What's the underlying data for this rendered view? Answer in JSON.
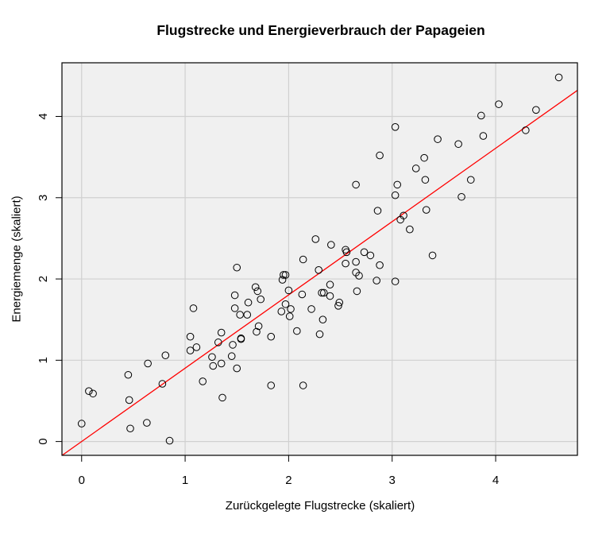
{
  "chart_data": {
    "type": "scatter",
    "title": "Flugstrecke und Energieverbrauch der Papageien",
    "xlabel": "Zurückgelegte Flugstrecke (skaliert)",
    "ylabel": "Energiemenge (skaliert)",
    "xlim": [
      -0.19,
      4.79
    ],
    "ylim": [
      -0.17,
      4.66
    ],
    "xticks": [
      "0",
      "1",
      "2",
      "3",
      "4"
    ],
    "yticks": [
      "0",
      "1",
      "2",
      "3",
      "4"
    ],
    "grid": true,
    "legend": null,
    "colors": {
      "panel_background": "#f0f0f0",
      "grid": "#d0d0d0",
      "points": "#000000",
      "regression_line": "#ff0000"
    },
    "regression_line": {
      "intercept": 0.0,
      "slope": 0.902
    },
    "points": [
      [
        0.0,
        0.22
      ],
      [
        0.07,
        0.62
      ],
      [
        0.11,
        0.59
      ],
      [
        0.45,
        0.82
      ],
      [
        0.46,
        0.51
      ],
      [
        0.47,
        0.16
      ],
      [
        0.63,
        0.23
      ],
      [
        0.64,
        0.96
      ],
      [
        0.78,
        0.71
      ],
      [
        0.81,
        1.06
      ],
      [
        0.85,
        0.01
      ],
      [
        1.05,
        1.29
      ],
      [
        1.05,
        1.12
      ],
      [
        1.08,
        1.64
      ],
      [
        1.11,
        1.16
      ],
      [
        1.17,
        0.74
      ],
      [
        1.26,
        1.04
      ],
      [
        1.27,
        0.93
      ],
      [
        1.32,
        1.22
      ],
      [
        1.35,
        1.34
      ],
      [
        1.35,
        0.96
      ],
      [
        1.36,
        0.54
      ],
      [
        1.45,
        1.05
      ],
      [
        1.46,
        1.19
      ],
      [
        1.48,
        1.8
      ],
      [
        1.48,
        1.64
      ],
      [
        1.5,
        2.14
      ],
      [
        1.5,
        0.9
      ],
      [
        1.53,
        1.56
      ],
      [
        1.54,
        1.27
      ],
      [
        1.54,
        1.26
      ],
      [
        1.6,
        1.56
      ],
      [
        1.61,
        1.71
      ],
      [
        1.68,
        1.9
      ],
      [
        1.69,
        1.35
      ],
      [
        1.7,
        1.85
      ],
      [
        1.71,
        1.42
      ],
      [
        1.73,
        1.75
      ],
      [
        1.83,
        1.29
      ],
      [
        1.83,
        0.69
      ],
      [
        1.93,
        1.6
      ],
      [
        1.94,
        1.99
      ],
      [
        1.95,
        2.05
      ],
      [
        1.97,
        2.05
      ],
      [
        1.97,
        1.69
      ],
      [
        2.0,
        1.86
      ],
      [
        2.01,
        1.54
      ],
      [
        2.02,
        1.63
      ],
      [
        2.08,
        1.36
      ],
      [
        2.13,
        1.81
      ],
      [
        2.14,
        2.24
      ],
      [
        2.14,
        0.69
      ],
      [
        2.22,
        1.63
      ],
      [
        2.26,
        2.49
      ],
      [
        2.29,
        2.11
      ],
      [
        2.3,
        1.32
      ],
      [
        2.32,
        1.83
      ],
      [
        2.33,
        1.5
      ],
      [
        2.34,
        1.83
      ],
      [
        2.4,
        1.93
      ],
      [
        2.4,
        1.79
      ],
      [
        2.41,
        2.42
      ],
      [
        2.48,
        1.67
      ],
      [
        2.49,
        1.71
      ],
      [
        2.55,
        2.36
      ],
      [
        2.55,
        2.19
      ],
      [
        2.56,
        2.33
      ],
      [
        2.65,
        2.21
      ],
      [
        2.65,
        2.08
      ],
      [
        2.65,
        3.16
      ],
      [
        2.66,
        1.85
      ],
      [
        2.68,
        2.04
      ],
      [
        2.73,
        2.33
      ],
      [
        2.79,
        2.29
      ],
      [
        2.85,
        1.98
      ],
      [
        2.86,
        2.84
      ],
      [
        2.88,
        2.17
      ],
      [
        2.88,
        3.52
      ],
      [
        3.03,
        1.97
      ],
      [
        3.03,
        3.87
      ],
      [
        3.03,
        3.03
      ],
      [
        3.05,
        3.16
      ],
      [
        3.08,
        2.73
      ],
      [
        3.11,
        2.78
      ],
      [
        3.17,
        2.61
      ],
      [
        3.23,
        3.36
      ],
      [
        3.31,
        3.49
      ],
      [
        3.32,
        3.22
      ],
      [
        3.33,
        2.85
      ],
      [
        3.39,
        2.29
      ],
      [
        3.44,
        3.72
      ],
      [
        3.64,
        3.66
      ],
      [
        3.67,
        3.01
      ],
      [
        3.76,
        3.22
      ],
      [
        3.86,
        4.01
      ],
      [
        3.88,
        3.76
      ],
      [
        4.03,
        4.15
      ],
      [
        4.29,
        3.83
      ],
      [
        4.39,
        4.08
      ],
      [
        4.61,
        4.48
      ]
    ]
  }
}
